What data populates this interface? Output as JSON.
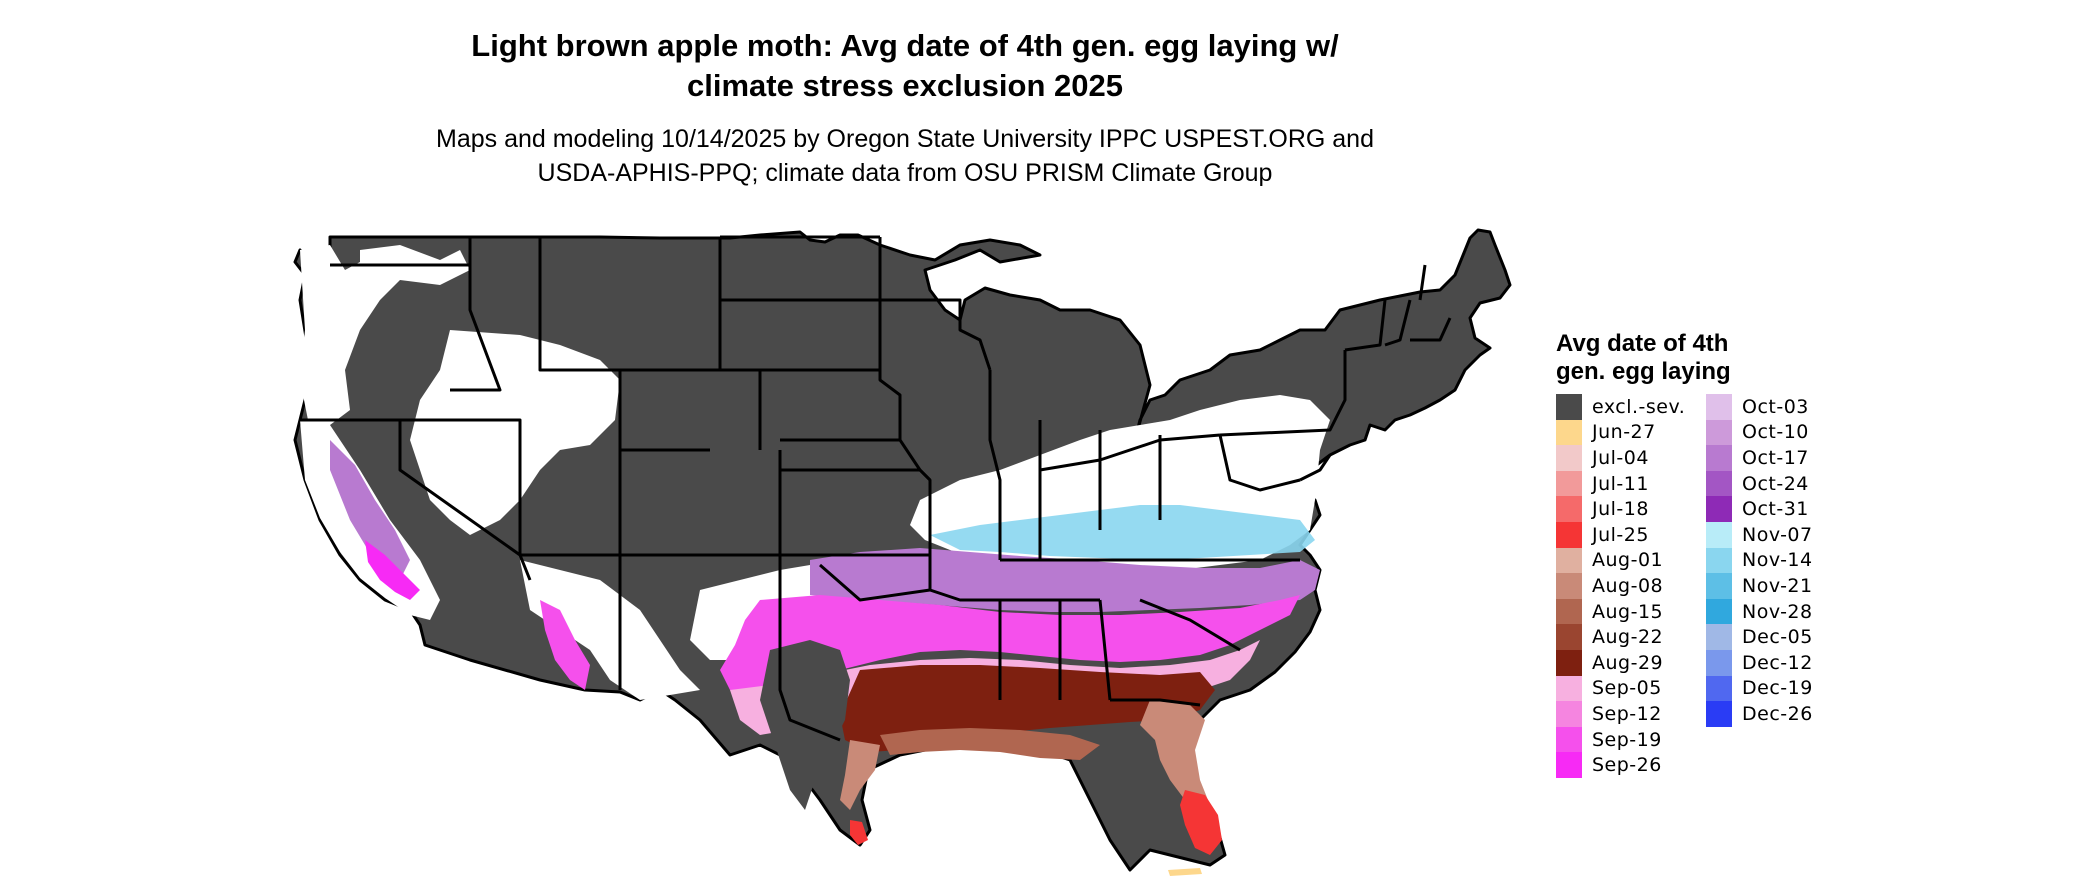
{
  "title": {
    "line1": "Light brown apple moth: Avg date of 4th gen. egg laying w/",
    "line2": "climate stress exclusion 2025"
  },
  "subtitle": {
    "line1": "Maps and modeling 10/14/2025 by Oregon State University IPPC USPEST.ORG and",
    "line2": "USDA-APHIS-PPQ; climate data from OSU PRISM Climate Group"
  },
  "legend": {
    "title_line1": "Avg date of 4th",
    "title_line2": "gen. egg laying",
    "column1": [
      {
        "label": "excl.-sev.",
        "color": "#4a4a4a"
      },
      {
        "label": "Jun-27",
        "color": "#fdd78c"
      },
      {
        "label": "Jul-04",
        "color": "#f2c9c9"
      },
      {
        "label": "Jul-11",
        "color": "#f29a9a"
      },
      {
        "label": "Jul-18",
        "color": "#f56a6a"
      },
      {
        "label": "Jul-25",
        "color": "#f53535"
      },
      {
        "label": "Aug-01",
        "color": "#e0b0a0"
      },
      {
        "label": "Aug-08",
        "color": "#c98a78"
      },
      {
        "label": "Aug-15",
        "color": "#b06650"
      },
      {
        "label": "Aug-22",
        "color": "#9a4530"
      },
      {
        "label": "Aug-29",
        "color": "#7e2010"
      },
      {
        "label": "Sep-05",
        "color": "#f7b0e0"
      },
      {
        "label": "Sep-12",
        "color": "#f585e0"
      },
      {
        "label": "Sep-19",
        "color": "#f550ec"
      },
      {
        "label": "Sep-26",
        "color": "#f72af5"
      }
    ],
    "column2": [
      {
        "label": "Oct-03",
        "color": "#e0c0ea"
      },
      {
        "label": "Oct-10",
        "color": "#cd9ada"
      },
      {
        "label": "Oct-17",
        "color": "#b87ad0"
      },
      {
        "label": "Oct-24",
        "color": "#a356c4"
      },
      {
        "label": "Oct-31",
        "color": "#8e2ab6"
      },
      {
        "label": "Nov-07",
        "color": "#b8ecf8"
      },
      {
        "label": "Nov-14",
        "color": "#8ad6ef"
      },
      {
        "label": "Nov-21",
        "color": "#5dbfe6"
      },
      {
        "label": "Nov-28",
        "color": "#30a8de"
      },
      {
        "label": "Dec-05",
        "color": "#a0b8e6"
      },
      {
        "label": "Dec-12",
        "color": "#7a98ec"
      },
      {
        "label": "Dec-19",
        "color": "#5068f0"
      },
      {
        "label": "Dec-26",
        "color": "#2a3cf5"
      }
    ]
  }
}
